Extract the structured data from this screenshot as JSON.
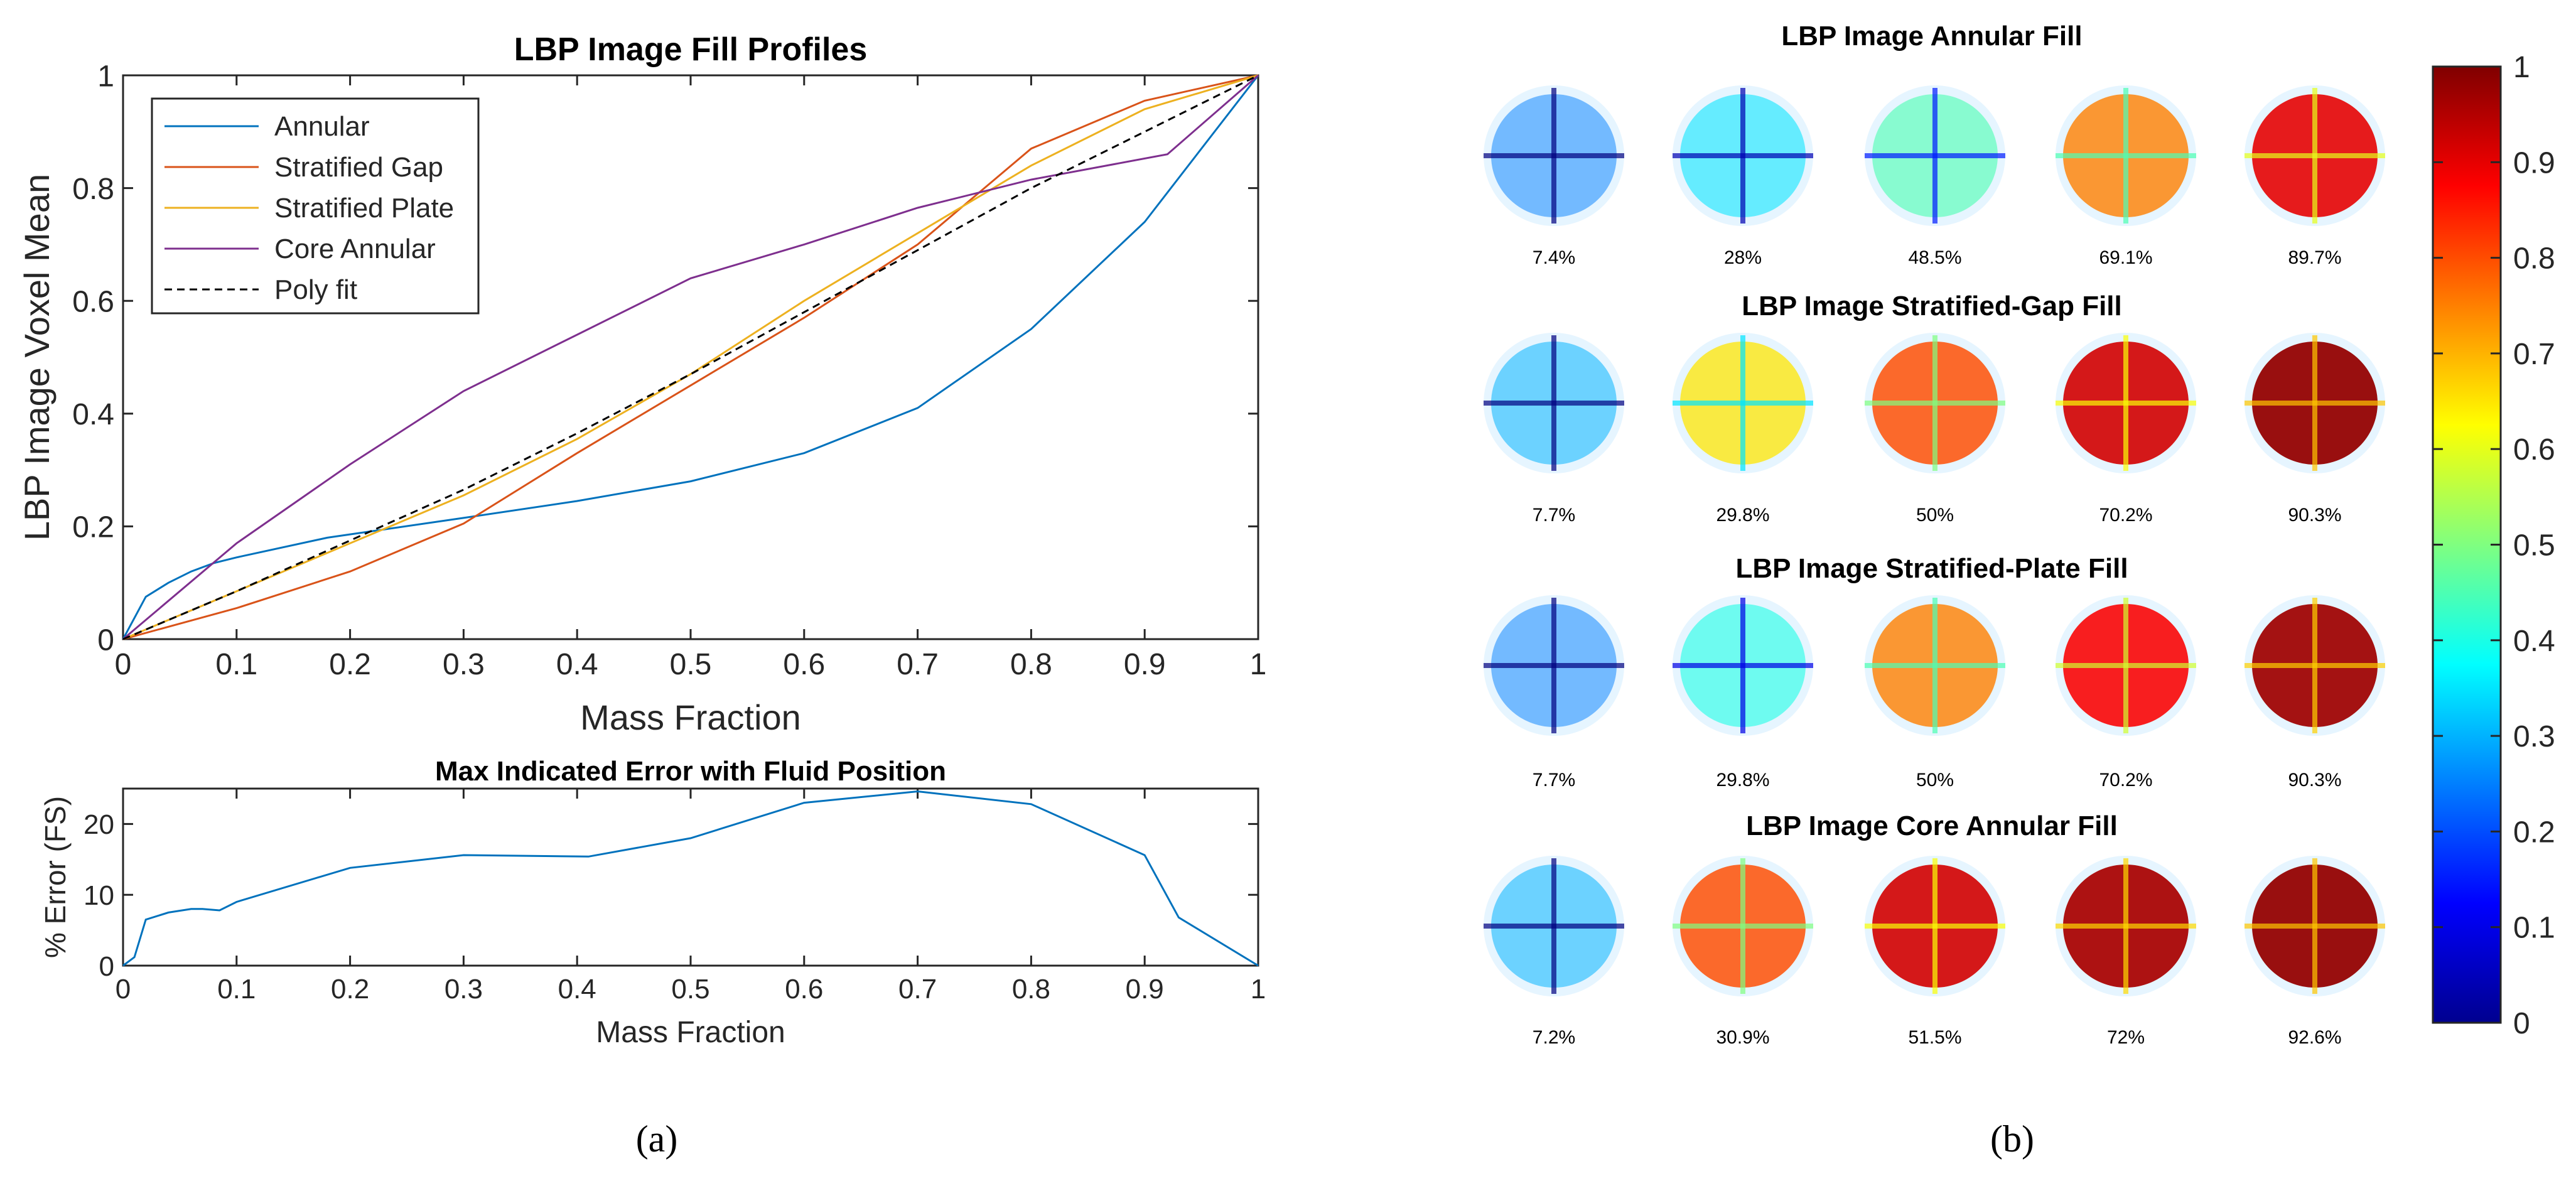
{
  "chart_data": [
    {
      "type": "line",
      "title": "LBP Image Fill Profiles",
      "xlabel": "Mass Fraction",
      "ylabel": "LBP Image Voxel Mean",
      "xlim": [
        0,
        1
      ],
      "ylim": [
        0,
        1
      ],
      "xticks": [
        "0",
        "0.1",
        "0.2",
        "0.3",
        "0.4",
        "0.5",
        "0.6",
        "0.7",
        "0.8",
        "0.9",
        "1"
      ],
      "yticks": [
        "0",
        "0.2",
        "0.4",
        "0.6",
        "0.8",
        "1"
      ],
      "legend_position": "top-left",
      "grid": false,
      "series": [
        {
          "name": "Annular",
          "color": "#0072BD",
          "style": "solid",
          "x": [
            0,
            0.02,
            0.04,
            0.06,
            0.08,
            0.1,
            0.18,
            0.3,
            0.4,
            0.5,
            0.6,
            0.7,
            0.8,
            0.9,
            1.0
          ],
          "y": [
            0,
            0.075,
            0.1,
            0.12,
            0.135,
            0.145,
            0.18,
            0.215,
            0.245,
            0.28,
            0.33,
            0.41,
            0.55,
            0.74,
            1.0
          ]
        },
        {
          "name": "Stratified Gap",
          "color": "#D95319",
          "style": "solid",
          "x": [
            0,
            0.1,
            0.2,
            0.3,
            0.4,
            0.5,
            0.6,
            0.7,
            0.8,
            0.9,
            1.0
          ],
          "y": [
            0,
            0.055,
            0.12,
            0.205,
            0.33,
            0.45,
            0.57,
            0.7,
            0.87,
            0.955,
            1.0
          ]
        },
        {
          "name": "Stratified Plate",
          "color": "#EDB120",
          "style": "solid",
          "x": [
            0,
            0.1,
            0.2,
            0.3,
            0.4,
            0.5,
            0.6,
            0.7,
            0.8,
            0.9,
            1.0
          ],
          "y": [
            0,
            0.085,
            0.17,
            0.255,
            0.355,
            0.47,
            0.6,
            0.72,
            0.84,
            0.94,
            1.0
          ]
        },
        {
          "name": "Core Annular",
          "color": "#7E2F8E",
          "style": "solid",
          "x": [
            0,
            0.1,
            0.2,
            0.3,
            0.4,
            0.5,
            0.6,
            0.7,
            0.8,
            0.92,
            1.0
          ],
          "y": [
            0,
            0.17,
            0.31,
            0.44,
            0.54,
            0.64,
            0.7,
            0.765,
            0.815,
            0.86,
            1.0
          ]
        },
        {
          "name": "Poly fit",
          "color": "#000000",
          "style": "dashed",
          "x": [
            0,
            0.1,
            0.2,
            0.3,
            0.4,
            0.5,
            0.6,
            0.7,
            0.8,
            0.9,
            1.0
          ],
          "y": [
            0,
            0.085,
            0.175,
            0.265,
            0.365,
            0.47,
            0.58,
            0.69,
            0.8,
            0.9,
            1.0
          ]
        }
      ]
    },
    {
      "type": "line",
      "title": "Max Indicated Error with Fluid Position",
      "xlabel": "Mass Fraction",
      "ylabel": "% Error (FS)",
      "xlim": [
        0,
        1
      ],
      "ylim": [
        0,
        25
      ],
      "xticks": [
        "0",
        "0.1",
        "0.2",
        "0.3",
        "0.4",
        "0.5",
        "0.6",
        "0.7",
        "0.8",
        "0.9",
        "1"
      ],
      "yticks": [
        "0",
        "10",
        "20"
      ],
      "grid": false,
      "series": [
        {
          "color": "#0072BD",
          "x": [
            0,
            0.01,
            0.02,
            0.04,
            0.06,
            0.07,
            0.085,
            0.1,
            0.2,
            0.3,
            0.41,
            0.5,
            0.6,
            0.7,
            0.8,
            0.9,
            0.93,
            1.0
          ],
          "y": [
            0,
            1.2,
            6.5,
            7.5,
            8.0,
            8.0,
            7.8,
            9.0,
            13.8,
            15.6,
            15.4,
            18.0,
            23.0,
            24.6,
            22.8,
            15.6,
            6.8,
            0
          ]
        }
      ]
    },
    {
      "type": "heatmap",
      "title": "LBP Image Annular Fill",
      "colormap": "jet",
      "levels": [
        0.25,
        0.35,
        0.45,
        0.75,
        0.9
      ],
      "fill_labels": [
        "7.4%",
        "28%",
        "48.5%",
        "69.1%",
        "89.7%"
      ]
    },
    {
      "type": "heatmap",
      "title": "LBP Image Stratified-Gap Fill",
      "colormap": "jet",
      "levels": [
        0.3,
        0.65,
        0.8,
        0.92,
        0.98
      ],
      "fill_labels": [
        "7.7%",
        "29.8%",
        "50%",
        "70.2%",
        "90.3%"
      ]
    },
    {
      "type": "heatmap",
      "title": "LBP Image Stratified-Plate Fill",
      "colormap": "jet",
      "levels": [
        0.25,
        0.4,
        0.75,
        0.88,
        0.97
      ],
      "fill_labels": [
        "7.7%",
        "29.8%",
        "50%",
        "70.2%",
        "90.3%"
      ]
    },
    {
      "type": "heatmap",
      "title": "LBP Image Core Annular Fill",
      "colormap": "jet",
      "levels": [
        0.3,
        0.8,
        0.92,
        0.96,
        0.98
      ],
      "fill_labels": [
        "7.2%",
        "30.9%",
        "51.5%",
        "72%",
        "92.6%"
      ]
    },
    {
      "type": "colorbar",
      "colormap": "jet",
      "range": [
        0,
        1
      ],
      "ticks": [
        "0",
        "0.1",
        "0.2",
        "0.3",
        "0.4",
        "0.5",
        "0.6",
        "0.7",
        "0.8",
        "0.9",
        "1"
      ]
    }
  ],
  "captions": {
    "a": "(a)",
    "b": "(b)"
  }
}
